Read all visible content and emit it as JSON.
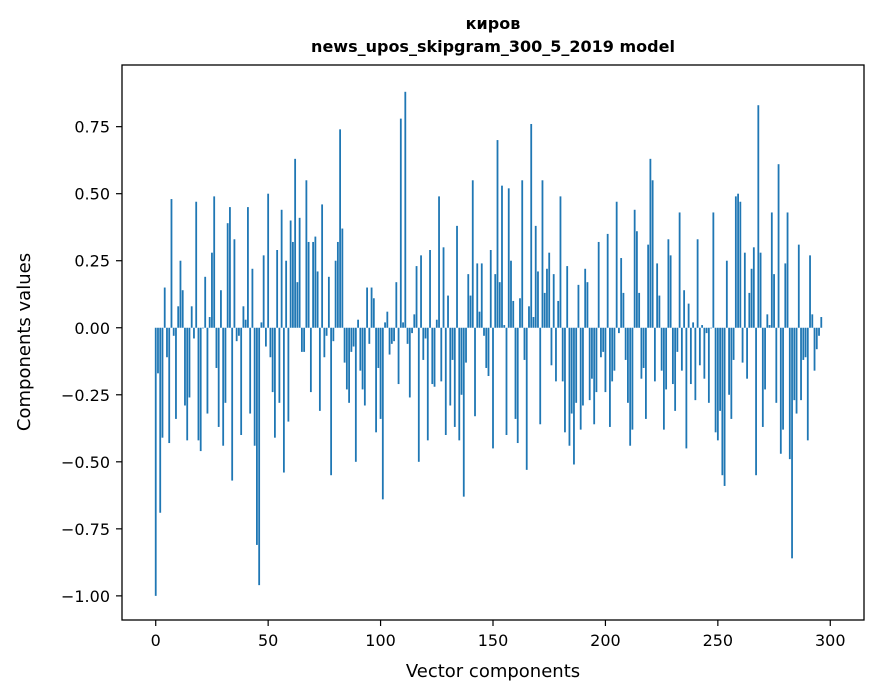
{
  "chart_data": {
    "type": "bar",
    "title": "киров",
    "subtitle": "news_upos_skipgram_300_5_2019 model",
    "xlabel": "Vector components",
    "ylabel": "Components values",
    "xlim": [
      -15,
      315
    ],
    "ylim": [
      -1.09,
      0.98
    ],
    "x_ticks": [
      0,
      50,
      100,
      150,
      200,
      250,
      300
    ],
    "y_ticks": [
      -1.0,
      -0.75,
      -0.5,
      -0.25,
      0.0,
      0.25,
      0.5,
      0.75
    ],
    "x_tick_labels": [
      "0",
      "50",
      "100",
      "150",
      "200",
      "250",
      "300"
    ],
    "y_tick_labels": [
      "−1.00",
      "−0.75",
      "−0.50",
      "−0.25",
      "0.00",
      "0.25",
      "0.50",
      "0.75"
    ],
    "bar_color": "#1f77b4",
    "series": [
      {
        "name": "киров",
        "values": [
          -1.0,
          -0.17,
          -0.69,
          -0.41,
          0.15,
          -0.11,
          -0.43,
          0.48,
          -0.03,
          -0.34,
          0.08,
          0.25,
          0.14,
          -0.29,
          -0.42,
          -0.26,
          0.08,
          -0.04,
          0.47,
          -0.42,
          -0.46,
          0.0,
          0.19,
          -0.32,
          0.04,
          0.28,
          0.49,
          -0.15,
          -0.37,
          0.14,
          -0.44,
          -0.28,
          0.39,
          0.45,
          -0.57,
          0.33,
          -0.05,
          -0.03,
          -0.4,
          0.08,
          0.03,
          0.45,
          -0.32,
          0.22,
          -0.44,
          -0.81,
          -0.96,
          0.02,
          0.27,
          -0.07,
          0.5,
          -0.11,
          -0.24,
          -0.41,
          0.29,
          -0.28,
          0.44,
          -0.54,
          0.25,
          -0.35,
          0.4,
          0.32,
          0.63,
          0.17,
          0.41,
          -0.09,
          -0.09,
          0.55,
          0.32,
          -0.24,
          0.32,
          0.34,
          0.21,
          -0.31,
          0.46,
          -0.11,
          -0.03,
          0.19,
          -0.55,
          -0.05,
          0.25,
          0.32,
          0.74,
          0.37,
          -0.13,
          -0.23,
          -0.28,
          -0.09,
          -0.07,
          -0.5,
          0.03,
          -0.16,
          -0.23,
          -0.29,
          0.15,
          -0.06,
          0.15,
          0.11,
          -0.39,
          -0.15,
          -0.34,
          -0.64,
          0.02,
          0.06,
          -0.1,
          -0.06,
          -0.05,
          0.17,
          -0.21,
          0.78,
          0.02,
          0.88,
          -0.06,
          -0.26,
          -0.02,
          0.05,
          0.23,
          -0.5,
          0.27,
          -0.12,
          -0.04,
          -0.42,
          0.29,
          -0.21,
          -0.22,
          0.03,
          0.49,
          -0.2,
          0.3,
          -0.4,
          0.12,
          -0.29,
          -0.12,
          -0.37,
          0.38,
          -0.42,
          -0.25,
          -0.63,
          -0.13,
          0.2,
          0.12,
          0.55,
          -0.33,
          0.24,
          0.06,
          0.24,
          -0.03,
          -0.15,
          -0.18,
          0.29,
          -0.45,
          0.2,
          0.7,
          0.17,
          0.53,
          0.01,
          -0.4,
          0.52,
          0.25,
          0.1,
          -0.34,
          -0.43,
          0.11,
          0.55,
          -0.12,
          -0.53,
          0.08,
          0.76,
          0.04,
          0.38,
          0.21,
          -0.36,
          0.55,
          0.13,
          0.22,
          0.28,
          -0.14,
          0.2,
          -0.2,
          0.1,
          0.49,
          -0.2,
          -0.39,
          0.23,
          -0.44,
          -0.32,
          -0.51,
          -0.28,
          0.16,
          -0.38,
          -0.29,
          0.22,
          0.17,
          -0.27,
          -0.19,
          -0.36,
          -0.24,
          0.32,
          -0.11,
          -0.09,
          -0.24,
          0.35,
          -0.37,
          -0.2,
          -0.16,
          0.47,
          -0.02,
          0.26,
          0.13,
          -0.12,
          -0.28,
          -0.44,
          -0.38,
          0.44,
          0.36,
          0.13,
          -0.19,
          -0.15,
          -0.34,
          0.31,
          0.63,
          0.55,
          -0.2,
          0.24,
          0.12,
          -0.16,
          -0.38,
          -0.23,
          0.33,
          0.27,
          -0.21,
          -0.31,
          -0.09,
          0.43,
          -0.16,
          0.14,
          -0.45,
          0.09,
          -0.21,
          0.02,
          -0.27,
          0.33,
          -0.14,
          0.01,
          -0.19,
          -0.02,
          -0.28,
          0.0,
          0.43,
          -0.39,
          -0.42,
          -0.31,
          -0.55,
          -0.59,
          0.25,
          -0.25,
          -0.34,
          -0.12,
          0.49,
          0.5,
          0.47,
          -0.13,
          0.28,
          -0.19,
          0.13,
          0.22,
          0.3,
          -0.55,
          0.83,
          0.28,
          -0.37,
          -0.23,
          0.05,
          0.01,
          0.43,
          0.2,
          -0.28,
          0.61,
          -0.47,
          -0.38,
          0.24,
          0.43,
          -0.49,
          -0.86,
          -0.27,
          -0.32,
          0.31,
          -0.27,
          -0.12,
          -0.11,
          -0.42,
          0.27,
          0.05,
          -0.16,
          -0.08,
          -0.03,
          0.04
        ]
      }
    ]
  }
}
